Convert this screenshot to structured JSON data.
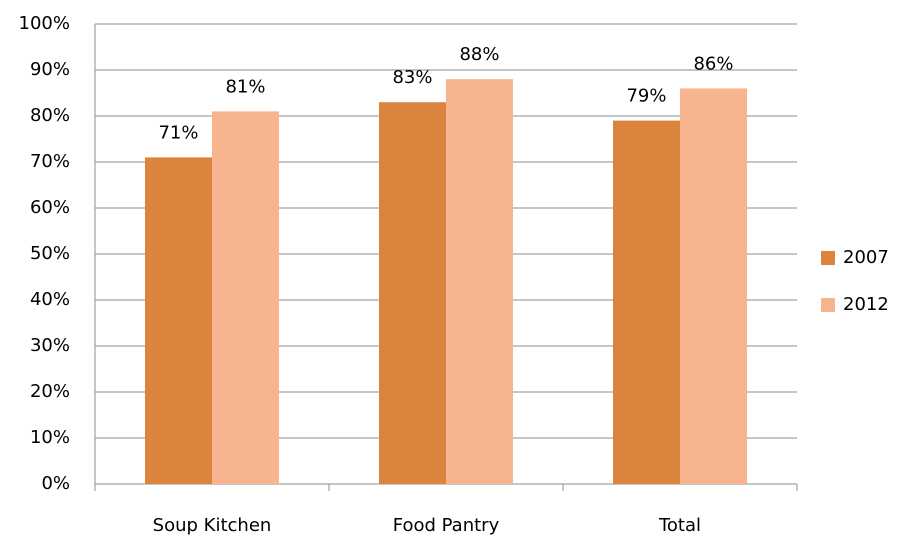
{
  "chart_data": {
    "type": "bar",
    "categories": [
      "Soup Kitchen",
      "Food Pantry",
      "Total"
    ],
    "series": [
      {
        "name": "2007",
        "color": "#da843e",
        "values": [
          71,
          83,
          79
        ],
        "value_labels": [
          "71%",
          "83%",
          "79%"
        ]
      },
      {
        "name": "2012",
        "color": "#f8b48e",
        "values": [
          81,
          88,
          86
        ],
        "value_labels": [
          "81%",
          "88%",
          "86%"
        ]
      }
    ],
    "ylim": [
      0,
      100
    ],
    "yticks": [
      {
        "value": 0,
        "label": "0%"
      },
      {
        "value": 10,
        "label": "10%"
      },
      {
        "value": 20,
        "label": "20%"
      },
      {
        "value": 30,
        "label": "30%"
      },
      {
        "value": 40,
        "label": "40%"
      },
      {
        "value": 50,
        "label": "50%"
      },
      {
        "value": 60,
        "label": "60%"
      },
      {
        "value": 70,
        "label": "70%"
      },
      {
        "value": 80,
        "label": "80%"
      },
      {
        "value": 90,
        "label": "90%"
      },
      {
        "value": 100,
        "label": "100%"
      }
    ],
    "grid": true,
    "legend": "right"
  }
}
